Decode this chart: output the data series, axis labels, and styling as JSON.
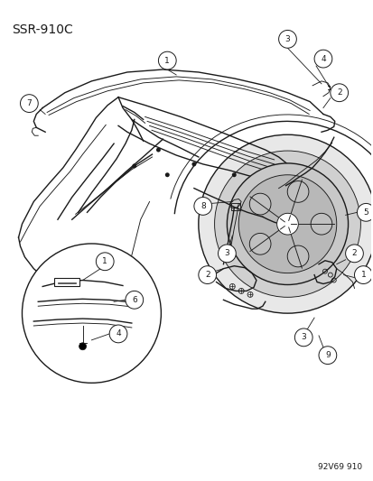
{
  "title": "SSR-910C",
  "footer": "92V69 910",
  "bg_color": "#ffffff",
  "line_color": "#1a1a1a",
  "title_fontsize": 10,
  "footer_fontsize": 6.5,
  "callout_r": 0.021
}
